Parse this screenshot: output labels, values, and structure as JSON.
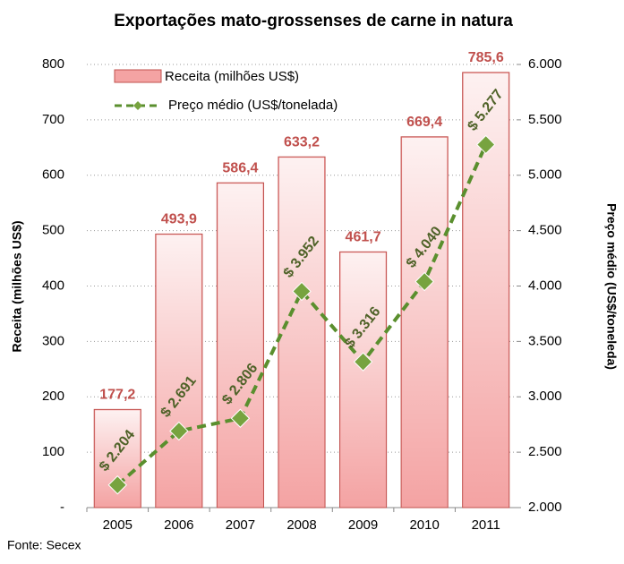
{
  "chart_data": {
    "type": "bar-line",
    "title": "Exportações mato-grossenses de carne in natura",
    "y_label": "Receita (milhões US$)",
    "y2_label": "Preço médio (US$/toneleda)",
    "note": "Fonte: Secex",
    "categories": [
      "2005",
      "2006",
      "2007",
      "2008",
      "2009",
      "2010",
      "2011"
    ],
    "series": [
      {
        "name": "Receita (milhões US$)",
        "type": "bar",
        "color": "#f4a3a3",
        "values": [
          177.2,
          493.9,
          586.4,
          633.2,
          461.7,
          669.4,
          785.6
        ],
        "value_labels": [
          "177,2",
          "493,9",
          "586,4",
          "633,2",
          "461,7",
          "669,4",
          "785,6"
        ]
      },
      {
        "name": "Preço médio (US$/tonelada)",
        "type": "line",
        "axis": "y2",
        "color": "#5a8f2e",
        "values": [
          2204,
          2691,
          2806,
          3952,
          3316,
          4040,
          5277
        ],
        "value_labels": [
          "$ 2.204",
          "$ 2.691",
          "$ 2.806",
          "$ 3.952",
          "$ 3.316",
          "$ 4.040",
          "$ 5.277"
        ]
      }
    ],
    "ylim": [
      0,
      800
    ],
    "yticks": [
      {
        "value": 0,
        "label": "-"
      },
      100,
      200,
      300,
      400,
      500,
      600,
      700,
      800
    ],
    "y2lim": [
      2000,
      6000
    ],
    "y2ticks": [
      {
        "value": 2000,
        "label": "2.000"
      },
      {
        "value": 2500,
        "label": "2.500"
      },
      {
        "value": 3000,
        "label": "3.000"
      },
      {
        "value": 3500,
        "label": "3.500"
      },
      {
        "value": 4000,
        "label": "4.000"
      },
      {
        "value": 4500,
        "label": "4.500"
      },
      {
        "value": 5000,
        "label": "5.000"
      },
      {
        "value": 5500,
        "label": "5.500"
      },
      {
        "value": 6000,
        "label": "6.000"
      }
    ],
    "grid": true
  }
}
